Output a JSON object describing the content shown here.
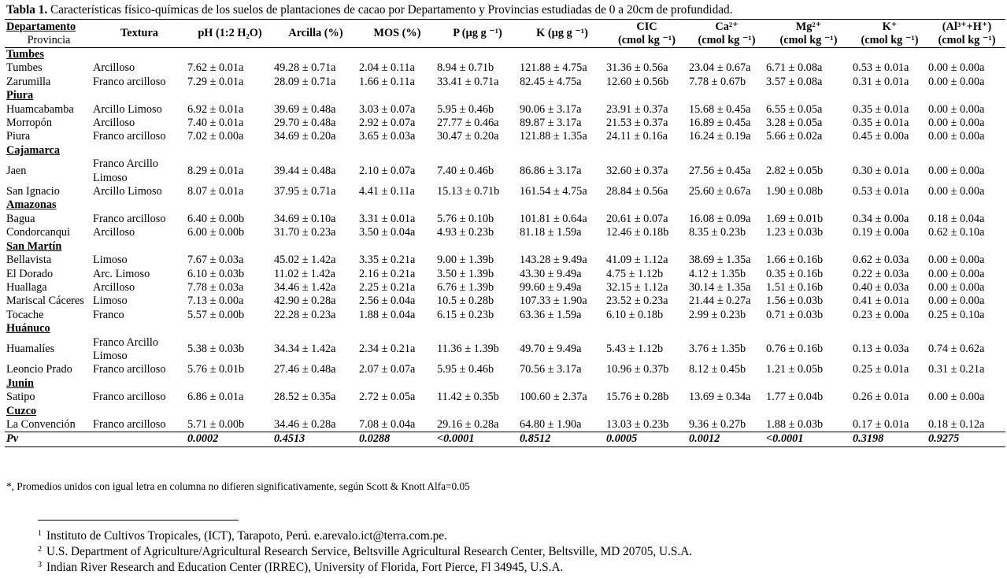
{
  "caption": {
    "label": "Tabla 1.",
    "text": " Características físico-químicas de los suelos de plantaciones de cacao por Departamento y Provincias estudiadas de 0 a 20cm de profundidad."
  },
  "headers": {
    "dept": "Departamento",
    "prov": "Provincia",
    "textura": "Textura",
    "ph": "pH (1:2 H₂O)",
    "arcilla": "Arcilla (%)",
    "mos": "MOS (%)",
    "p": "P (µg g ⁻¹)",
    "k": "K (µg g ⁻¹)",
    "cic": "CIC",
    "cic_unit": "(cmol kg ⁻¹)",
    "ca": "Ca²⁺",
    "ca_unit": "(cmol kg ⁻¹)",
    "mg": "Mg²⁺",
    "mg_unit": "(cmol kg ⁻¹)",
    "kk": "K⁺",
    "kk_unit": "(cmol kg ⁻¹)",
    "al": "(Al³⁺+H⁺)",
    "al_unit": "(cmol kg ⁻¹)"
  },
  "rows": [
    {
      "dept": "Tumbes"
    },
    {
      "prov": "Tumbes",
      "tex": "Arcilloso",
      "ph": "7.62 ± 0.01a",
      "arc": "49.28 ± 0.71a",
      "mos": "2.04 ± 0.11a",
      "p": "8.94 ± 0.71b",
      "k": "121.88 ± 4.75a",
      "cic": "31.36 ± 0.56a",
      "ca": "23.04 ± 0.67a",
      "mg": "6.71 ± 0.08a",
      "kk": "0.53 ± 0.01a",
      "al": "0.00 ± 0.00a"
    },
    {
      "prov": "Zarumilla",
      "tex": "Franco arcilloso",
      "ph": "7.29 ± 0.01a",
      "arc": "28.09 ± 0.71a",
      "mos": "1.66 ± 0.11a",
      "p": "33.41 ± 0.71a",
      "k": "82.45 ± 4.75a",
      "cic": "12.60 ± 0.56b",
      "ca": "7.78 ± 0.67b",
      "mg": "3.57 ± 0.08a",
      "kk": "0.31 ± 0.01a",
      "al": "0.00 ± 0.00a"
    },
    {
      "dept": "Piura"
    },
    {
      "prov": "Huamcabamba",
      "tex": "Arcillo Limoso",
      "ph": "6.92 ± 0.01a",
      "arc": "39.69 ± 0.48a",
      "mos": "3.03 ± 0.07a",
      "p": "5.95 ± 0.46b",
      "k": "90.06 ± 3.17a",
      "cic": "23.91 ± 0.37a",
      "ca": "15.68 ± 0.45a",
      "mg": "6.55 ± 0.05a",
      "kk": "0.35 ± 0.01a",
      "al": "0.00 ± 0.00a"
    },
    {
      "prov": "Morropón",
      "tex": "Arcilloso",
      "ph": "7.40 ± 0.01a",
      "arc": "29.70 ± 0.48a",
      "mos": "2.92 ± 0.07a",
      "p": "27.77 ± 0.46a",
      "k": "89.87 ± 3.17a",
      "cic": "21.53 ± 0.37a",
      "ca": "16.89 ± 0.45a",
      "mg": "3.28 ± 0.05a",
      "kk": "0.35 ± 0.01a",
      "al": "0.00 ± 0.00a"
    },
    {
      "prov": "Piura",
      "tex": "Franco arcilloso",
      "ph": "7.02 ± 0.00a",
      "arc": "34.69 ± 0.20a",
      "mos": "3.65 ± 0.03a",
      "p": "30.47 ± 0.20a",
      "k": "121.88 ± 1.35a",
      "cic": "24.11 ± 0.16a",
      "ca": "16.24 ± 0.19a",
      "mg": "5.66 ± 0.02a",
      "kk": "0.45 ± 0.00a",
      "al": "0.00 ± 0.00a"
    },
    {
      "dept": "Cajamarca"
    },
    {
      "prov": "Jaen",
      "tex": "Franco Arcillo Limoso",
      "ph": "8.29 ± 0.01a",
      "arc": "39.44 ± 0.48a",
      "mos": "2.10 ± 0.07a",
      "p": "7.40 ± 0.46b",
      "k": "86.86 ± 3.17a",
      "cic": "32.60 ± 0.37a",
      "ca": "27.56 ± 0.45a",
      "mg": "2.82 ± 0.05b",
      "kk": "0.30 ± 0.01a",
      "al": "0.00 ± 0.00a"
    },
    {
      "prov": "San Ignacio",
      "tex": "Arcillo Limoso",
      "ph": "8.07 ± 0.01a",
      "arc": "37.95 ± 0.71a",
      "mos": "4.41 ± 0.11a",
      "p": "15.13 ± 0.71b",
      "k": "161.54 ± 4.75a",
      "cic": "28.84 ± 0.56a",
      "ca": "25.60 ± 0.67a",
      "mg": "1.90 ± 0.08b",
      "kk": "0.53 ± 0.01a",
      "al": "0.00 ± 0.00a"
    },
    {
      "dept": "Amazonas"
    },
    {
      "prov": "Bagua",
      "tex": "Franco arcilloso",
      "ph": "6.40 ± 0.00b",
      "arc": "34.69 ± 0.10a",
      "mos": "3.31 ± 0.01a",
      "p": "5.76 ± 0.10b",
      "k": "101.81 ± 0.64a",
      "cic": "20.61 ± 0.07a",
      "ca": "16.08 ± 0.09a",
      "mg": "1.69 ± 0.01b",
      "kk": "0.34 ± 0.00a",
      "al": "0.18 ± 0.04a"
    },
    {
      "prov": "Condorcanqui",
      "tex": "Arcilloso",
      "ph": "6.00 ± 0.00b",
      "arc": "31.70 ± 0.23a",
      "mos": "3.50 ± 0.04a",
      "p": "4.93 ± 0.23b",
      "k": "81.18 ± 1.59a",
      "cic": "12.46 ± 0.18b",
      "ca": "8.35 ± 0.23b",
      "mg": "1.23 ± 0.03b",
      "kk": "0.19 ± 0.00a",
      "al": "0.62 ± 0.10a"
    },
    {
      "dept": "San Martín"
    },
    {
      "prov": "Bellavista",
      "tex": "Limoso",
      "ph": "7.67 ± 0.03a",
      "arc": "45.02 ± 1.42a",
      "mos": "3.35 ± 0.21a",
      "p": "9.00 ± 1.39b",
      "k": "143.28 ± 9.49a",
      "cic": "41.09 ± 1.12a",
      "ca": "38.69 ± 1.35a",
      "mg": "1.66 ± 0.16b",
      "kk": "0.62 ± 0.03a",
      "al": "0.00 ± 0.00a"
    },
    {
      "prov": "El Dorado",
      "tex": "Arc. Limoso",
      "ph": "6.10 ± 0.03b",
      "arc": "11.02 ± 1.42a",
      "mos": "2.16 ± 0.21a",
      "p": "3.50 ± 1.39b",
      "k": "43.30 ± 9.49a",
      "cic": "4.75 ± 1.12b",
      "ca": "4.12 ± 1.35b",
      "mg": "0.35 ± 0.16b",
      "kk": "0.22 ± 0.03a",
      "al": "0.00 ± 0.00a"
    },
    {
      "prov": "Huallaga",
      "tex": "Arcilloso",
      "ph": "7.78 ± 0.03a",
      "arc": "34.46 ± 1.42a",
      "mos": "2.25 ± 0.21a",
      "p": "6.76 ± 1.39b",
      "k": "99.60 ± 9.49a",
      "cic": "32.15 ± 1.12a",
      "ca": "30.14 ± 1.35a",
      "mg": "1.51 ± 0.16b",
      "kk": "0.40 ± 0.03a",
      "al": "0.00 ± 0.00a"
    },
    {
      "prov": "Mariscal Cáceres",
      "tex": "Limoso",
      "ph": "7.13 ± 0.00a",
      "arc": "42.90 ± 0.28a",
      "mos": "2.56 ± 0.04a",
      "p": "10.5 ± 0.28b",
      "k": "107.33 ± 1.90a",
      "cic": "23.52 ± 0.23a",
      "ca": "21.44 ± 0.27a",
      "mg": "1.56 ± 0.03b",
      "kk": "0.41 ± 0.01a",
      "al": "0.00 ± 0.00a"
    },
    {
      "prov": "Tocache",
      "tex": "Franco",
      "ph": "5.57 ± 0.00b",
      "arc": "22.28 ± 0.23a",
      "mos": "1.88 ± 0.04a",
      "p": "6.15 ± 0.23b",
      "k": "63.36 ± 1.59a",
      "cic": "6.10 ± 0.18b",
      "ca": "2.99 ± 0.23b",
      "mg": "0.71 ± 0.03b",
      "kk": "0.23 ± 0.00a",
      "al": "0.25 ± 0.10a"
    },
    {
      "dept": "Huánuco"
    },
    {
      "prov": "Huamalíes",
      "tex": "Franco Arcillo Limoso",
      "ph": "5.38 ± 0.03b",
      "arc": "34.34 ± 1.42a",
      "mos": "2.34 ± 0.21a",
      "p": "11.36 ± 1.39b",
      "k": "49.70 ± 9.49a",
      "cic": "5.43 ± 1.12b",
      "ca": "3.76 ± 1.35b",
      "mg": "0.76 ± 0.16b",
      "kk": "0.13 ± 0.03a",
      "al": "0.74 ± 0.62a"
    },
    {
      "prov": "Leoncio Prado",
      "tex": "Franco arcilloso",
      "ph": "5.76 ± 0.01b",
      "arc": "27.46 ± 0.48a",
      "mos": "2.07 ± 0.07a",
      "p": "5.95 ± 0.46b",
      "k": "70.56 ± 3.17a",
      "cic": "10.96 ± 0.37b",
      "ca": "8.12 ± 0.45b",
      "mg": "1.21 ± 0.05b",
      "kk": "0.25 ± 0.01a",
      "al": "0.31 ± 0.21a"
    },
    {
      "dept": "Junin"
    },
    {
      "prov": "Satipo",
      "tex": "Franco arcilloso",
      "ph": "6.86 ± 0.01a",
      "arc": "28.52 ± 0.35a",
      "mos": "2.72 ± 0.05a",
      "p": "11.42 ± 0.35b",
      "k": "100.60 ± 2.37a",
      "cic": "15.76 ± 0.28b",
      "ca": "13.69 ± 0.34a",
      "mg": "1.77 ± 0.04b",
      "kk": "0.26 ± 0.01a",
      "al": "0.00 ± 0.00a"
    },
    {
      "dept": "Cuzco"
    },
    {
      "prov": "La Convención",
      "tex": "Franco arcilloso",
      "ph": "5.71 ± 0.00b",
      "arc": "34.46 ± 0.28a",
      "mos": "7.08 ± 0.04a",
      "p": "29.16 ± 0.28a",
      "k": "64.80 ± 1.90a",
      "cic": "13.03 ± 0.23b",
      "ca": "9.36 ± 0.27b",
      "mg": "1.88 ± 0.03b",
      "kk": "0.17 ± 0.01a",
      "al": "0.18 ± 0.12a"
    }
  ],
  "pv": {
    "label": "Pv",
    "ph": "0.0002",
    "arc": "0.4513",
    "mos": "0.0288",
    "p": "<0.0001",
    "k": "0.8512",
    "cic": "0.0005",
    "ca": "0.0012",
    "mg": "<0.0001",
    "kk": "0.3198",
    "al": "0.9275"
  },
  "table_note": "*,  Promedios unidos con igual letra en columna no difieren significativamente, según Scott & Knott Alfa=0.05",
  "footnotes": [
    {
      "n": "1",
      "text": "Instituto de Cultivos Tropicales, (ICT), Tarapoto, Perú. e.arevalo.ict@terra.com.pe."
    },
    {
      "n": "2",
      "text": "U.S. Department of Agriculture/Agricultural Research Service, Beltsville Agricultural Research Center, Beltsville, MD 20705, U.S.A."
    },
    {
      "n": "3",
      "text": "Indian River Research and Education Center (IRREC), University of Florida, Fort Pierce, Fl 34945, U.S.A."
    }
  ]
}
